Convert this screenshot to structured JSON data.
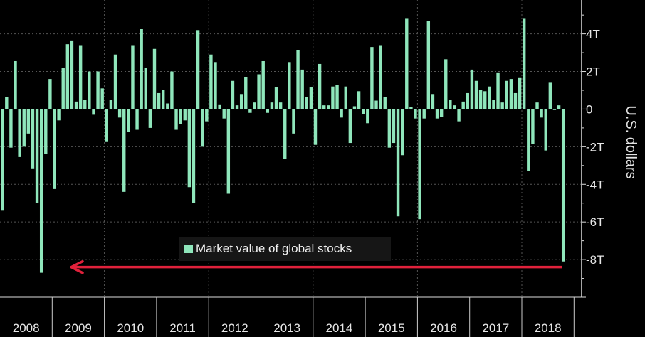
{
  "chart_data": {
    "type": "bar",
    "ylabel": "U.S. dollars",
    "ylim": [
      -10,
      5.8
    ],
    "y_ticks": [
      4,
      2,
      0,
      -2,
      -4,
      -6,
      -8
    ],
    "y_tick_labels": [
      "4T",
      "2T",
      "0",
      "-2T",
      "-4T",
      "-6T",
      "-8T"
    ],
    "x_tick_labels": [
      "2008",
      "2009",
      "2010",
      "2011",
      "2012",
      "2013",
      "2014",
      "2015",
      "2016",
      "2017",
      "2018"
    ],
    "grid": true,
    "legend": {
      "label": "Market value of global stocks",
      "placement": "bottom-center"
    },
    "bar_color": "#8fe6bb",
    "annotation": {
      "type": "arrow",
      "color": "#e0213b",
      "direction": "left",
      "y_value": -8.4
    },
    "series": [
      {
        "name": "Market value of global stocks",
        "unit": "trillion USD",
        "frequency": "monthly",
        "values_by_year": {
          "2008": [
            -5.4,
            0.65,
            -2.05,
            2.55,
            -2.55,
            -2.0,
            -1.3,
            -3.15,
            -5.0,
            -8.7,
            -2.4,
            1.6
          ],
          "2009": [
            -4.25,
            -0.6,
            2.2,
            3.45,
            3.65,
            0.4,
            3.4,
            0.5,
            2.0,
            -0.3,
            2.0,
            1.1
          ],
          "2010": [
            -1.75,
            0.5,
            2.9,
            -0.45,
            -4.4,
            -1.2,
            3.4,
            -1.1,
            4.25,
            2.2,
            -1.0,
            3.2
          ],
          "2011": [
            0.85,
            1.0,
            0.3,
            2.0,
            -1.1,
            -0.8,
            -0.6,
            -4.15,
            -5.0,
            4.2,
            -2.0,
            -0.65
          ],
          "2012": [
            2.9,
            2.5,
            0.25,
            -0.5,
            -4.5,
            1.5,
            0.2,
            0.8,
            1.7,
            -0.2,
            0.35,
            1.85
          ],
          "2013": [
            2.55,
            -0.2,
            0.35,
            1.15,
            0.35,
            -2.65,
            2.5,
            -1.3,
            3.15,
            2.1,
            0.65,
            1.15
          ],
          "2014": [
            -1.9,
            2.4,
            0.2,
            0.2,
            1.2,
            1.3,
            -0.45,
            1.2,
            -1.8,
            0.15,
            0.95,
            -0.25
          ],
          "2015": [
            -0.75,
            3.3,
            0.45,
            3.4,
            0.65,
            -2.05,
            -1.8,
            -5.7,
            -2.45,
            4.8,
            0.1,
            -0.5
          ],
          "2016": [
            -5.85,
            -0.5,
            4.7,
            0.8,
            -0.5,
            -0.4,
            2.65,
            0.5,
            0.2,
            -0.65,
            0.4,
            0.85
          ],
          "2017": [
            2.1,
            1.5,
            1.0,
            0.95,
            1.2,
            0.5,
            1.95,
            0.35,
            1.5,
            1.6,
            0.85,
            1.65
          ],
          "2018": [
            4.8,
            -3.3,
            -1.85,
            0.35,
            -0.45,
            -2.2,
            1.4,
            -0.05,
            0.2,
            -8.1
          ]
        }
      }
    ]
  }
}
